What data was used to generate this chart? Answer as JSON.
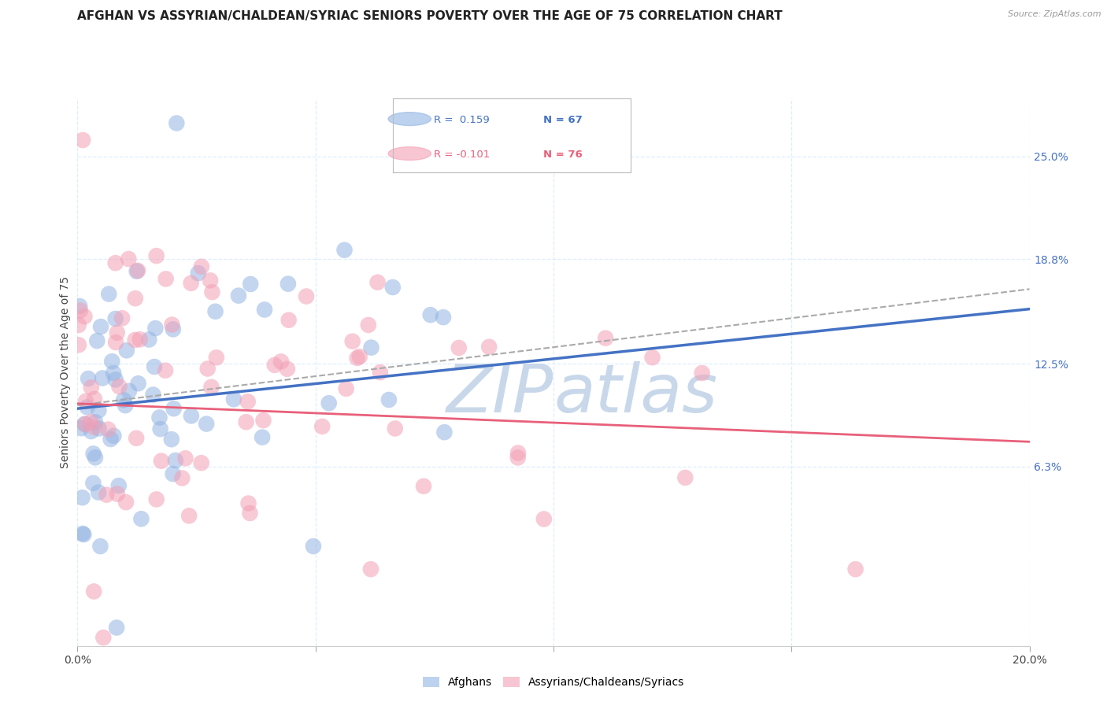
{
  "title": "AFGHAN VS ASSYRIAN/CHALDEAN/SYRIAC SENIORS POVERTY OVER THE AGE OF 75 CORRELATION CHART",
  "source": "Source: ZipAtlas.com",
  "ylabel": "Seniors Poverty Over the Age of 75",
  "right_yticks": [
    "25.0%",
    "18.8%",
    "12.5%",
    "6.3%"
  ],
  "right_ytick_vals": [
    0.25,
    0.188,
    0.125,
    0.063
  ],
  "xmin": 0.0,
  "xmax": 0.2,
  "ymin": -0.045,
  "ymax": 0.285,
  "afghan_color": "#92B4E3",
  "assyrian_color": "#F4A0B5",
  "afghan_line_color": "#4472C4",
  "assyrian_line_color": "#E8607A",
  "ci_line_color": "#AAAAAA",
  "watermark_text": "ZIP’atlas",
  "watermark_color": "#C8D8EA",
  "legend_R_afghan": "R =  0.159",
  "legend_N_afghan": "N = 67",
  "legend_R_assyrian": "R = -0.101",
  "legend_N_assyrian": "N = 76",
  "afghan_R": 0.159,
  "afghan_N": 67,
  "assyrian_R": -0.101,
  "assyrian_N": 76,
  "grid_color": "#DDEEFF",
  "background_color": "#FFFFFF",
  "title_fontsize": 11,
  "axis_label_fontsize": 10,
  "tick_fontsize": 10,
  "seed": 42,
  "afghan_line_start_y": 0.098,
  "afghan_line_end_y": 0.158,
  "assyrian_line_start_y": 0.101,
  "assyrian_line_end_y": 0.078,
  "ci_line_start_y": 0.1,
  "ci_line_end_y": 0.17
}
